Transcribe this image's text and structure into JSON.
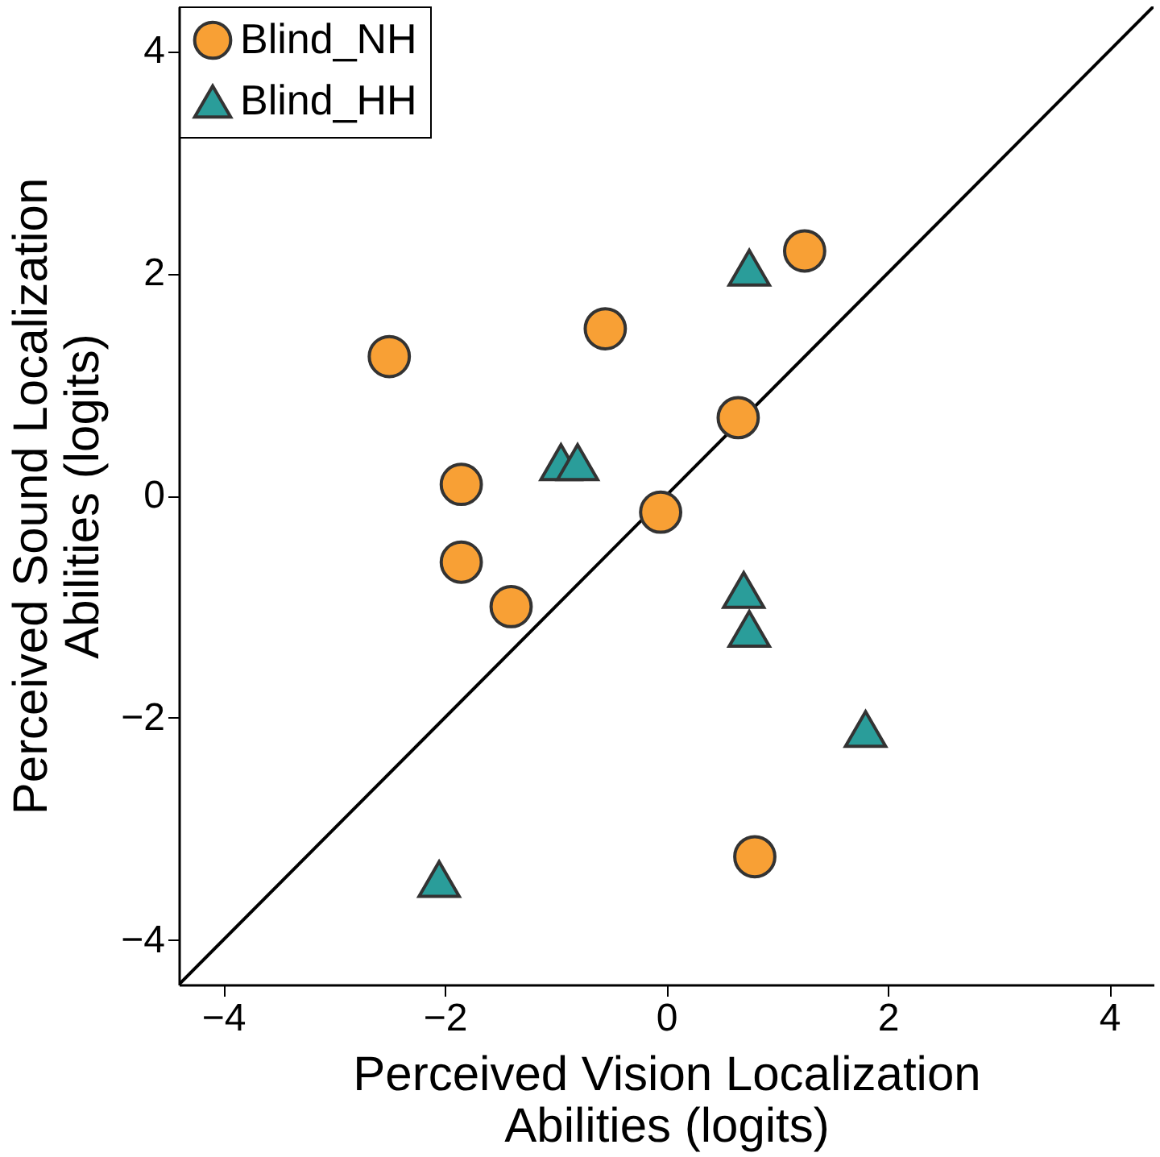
{
  "chart_data": {
    "type": "scatter",
    "xlabel": "Perceived Vision Localization\nAbilities (logits)",
    "ylabel": "Perceived Sound Localization\nAbilities (logits)",
    "xlim": [
      -4.4,
      4.4
    ],
    "ylim": [
      -4.4,
      4.4
    ],
    "xticks": [
      -4,
      -2,
      0,
      2,
      4
    ],
    "yticks": [
      -4,
      -2,
      0,
      2,
      4
    ],
    "grid": false,
    "legend": "top left",
    "series": [
      {
        "name": "Blind_NH",
        "color": "#f8a035",
        "marker": "circle",
        "x": [
          -2.5,
          -1.85,
          -1.85,
          -1.4,
          -0.55,
          -0.05,
          0.65,
          1.25,
          0.8
        ],
        "values": [
          1.25,
          0.1,
          -0.6,
          -1.0,
          1.5,
          -0.15,
          0.7,
          2.2,
          -3.25
        ]
      },
      {
        "name": "Blind_HH",
        "color": "#2a9d9a",
        "marker": "triangle",
        "x": [
          0.75,
          -0.95,
          -0.8,
          0.7,
          0.75,
          1.8,
          -2.05
        ],
        "values": [
          2.05,
          0.3,
          0.3,
          -0.85,
          -1.2,
          -2.1,
          -3.45
        ]
      },
      {
        "type": "line",
        "color": "#000000",
        "line_style": "solid",
        "marker": "none",
        "x": [
          -4.4,
          4.4
        ],
        "values": [
          -4.4,
          4.4
        ]
      }
    ]
  }
}
